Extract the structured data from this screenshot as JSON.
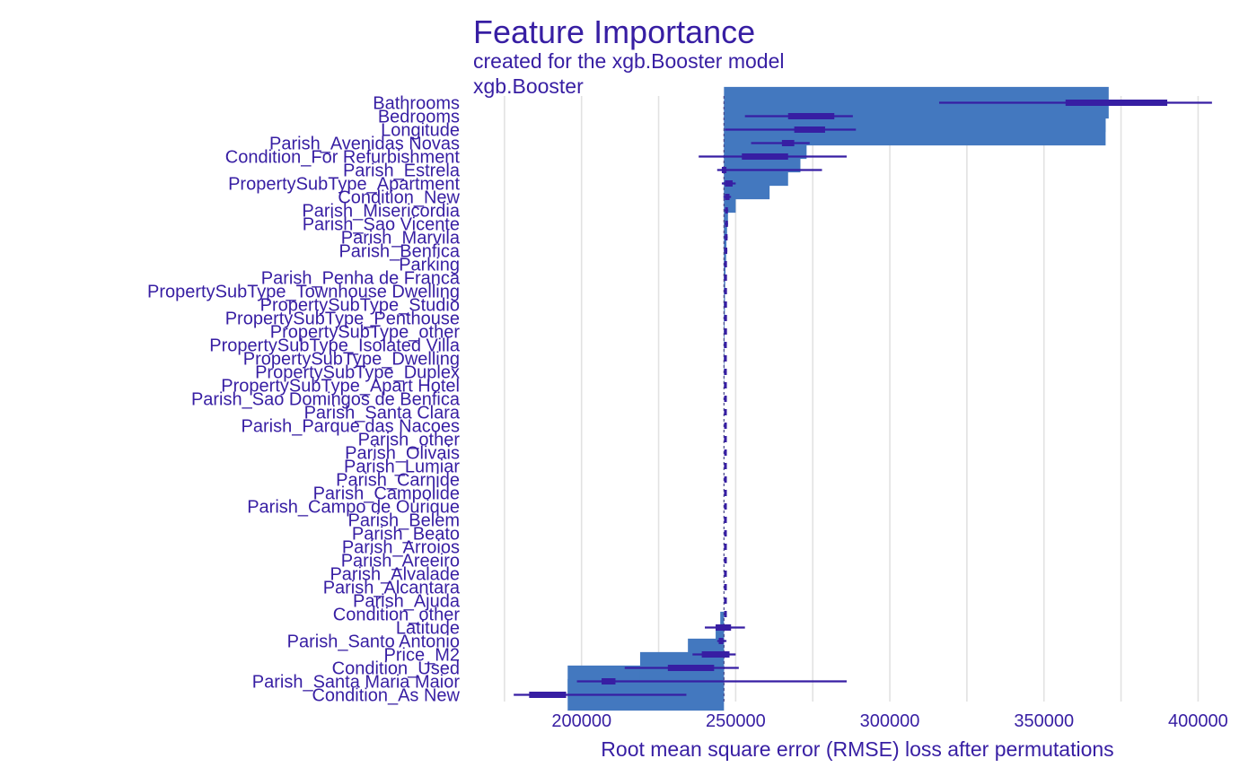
{
  "chart_data": {
    "type": "bar",
    "title": "Feature Importance",
    "subtitle": "created for the xgb.Booster model",
    "model_label": "xgb.Booster",
    "xlabel": "Root mean square error (RMSE) loss after permutations",
    "ylabel": "",
    "xlim": [
      173000,
      406000
    ],
    "xticks": [
      200000,
      250000,
      300000,
      350000,
      400000
    ],
    "xtick_labels": [
      "200000",
      "250000",
      "300000",
      "350000",
      "400000"
    ],
    "baseline": 246200,
    "grid": true,
    "bar_color": "#4378BF",
    "box_color": "#371EA3",
    "text_color": "#371EA3",
    "features": [
      {
        "name": "Bathrooms",
        "value": 371000,
        "whisker": [
          316000,
          404500
        ],
        "box": [
          357000,
          390000
        ]
      },
      {
        "name": "Bedrooms",
        "value": 370000,
        "whisker": [
          253000,
          288000
        ],
        "box": [
          267000,
          282000
        ]
      },
      {
        "name": "Longitude",
        "value": 370000,
        "whisker": [
          246500,
          289000
        ],
        "box": [
          269000,
          279000
        ]
      },
      {
        "name": "Parish_Avenidas Novas",
        "value": 273000,
        "whisker": [
          255000,
          274000
        ],
        "box": [
          265000,
          269000
        ]
      },
      {
        "name": "Condition_For Refurbishment",
        "value": 271000,
        "whisker": [
          238000,
          286000
        ],
        "box": [
          252000,
          267000
        ]
      },
      {
        "name": "Parish_Estrela",
        "value": 267000,
        "whisker": [
          244000,
          278000
        ],
        "box": [
          245500,
          247000
        ]
      },
      {
        "name": "PropertySubType_Apartment",
        "value": 261000,
        "whisker": [
          245500,
          250000
        ],
        "box": [
          246500,
          249000
        ]
      },
      {
        "name": "Condition_New",
        "value": 250000,
        "whisker": [
          246000,
          248500
        ],
        "box": [
          246500,
          248000
        ]
      },
      {
        "name": "Parish_Misericordia",
        "value": 247500,
        "whisker": [
          246400,
          247600
        ],
        "box": [
          246600,
          247400
        ]
      },
      {
        "name": "Parish_Sao Vicente",
        "value": 247200,
        "whisker": [
          246400,
          247500
        ],
        "box": [
          246600,
          247300
        ]
      },
      {
        "name": "Parish_Marvila",
        "value": 247000,
        "whisker": [
          246300,
          247400
        ],
        "box": [
          246500,
          247200
        ]
      },
      {
        "name": "Parish_Benfica",
        "value": 246900,
        "whisker": [
          246200,
          247300
        ],
        "box": [
          246400,
          247100
        ]
      },
      {
        "name": "Parking",
        "value": 246700,
        "whisker": [
          246200,
          247100
        ],
        "box": [
          246300,
          246900
        ]
      },
      {
        "name": "Parish_Penha de Franca",
        "value": 246600,
        "whisker": [
          246200,
          247000
        ],
        "box": [
          246300,
          246800
        ]
      },
      {
        "name": "PropertySubType_Townhouse Dwelling",
        "value": 246500,
        "whisker": [
          246200,
          246900
        ],
        "box": [
          246300,
          246700
        ]
      },
      {
        "name": "PropertySubType_Studio",
        "value": 246500,
        "whisker": [
          246200,
          246900
        ],
        "box": [
          246300,
          246700
        ]
      },
      {
        "name": "PropertySubType_Penthouse",
        "value": 246400,
        "whisker": [
          246200,
          246800
        ],
        "box": [
          246300,
          246600
        ]
      },
      {
        "name": "PropertySubType_other",
        "value": 246400,
        "whisker": [
          246200,
          246800
        ],
        "box": [
          246300,
          246600
        ]
      },
      {
        "name": "PropertySubType_Isolated Villa",
        "value": 246300,
        "whisker": [
          246200,
          246700
        ],
        "box": [
          246250,
          246550
        ]
      },
      {
        "name": "PropertySubType_Dwelling",
        "value": 246300,
        "whisker": [
          246200,
          246700
        ],
        "box": [
          246250,
          246550
        ]
      },
      {
        "name": "PropertySubType_Duplex",
        "value": 246300,
        "whisker": [
          246200,
          246700
        ],
        "box": [
          246250,
          246550
        ]
      },
      {
        "name": "PropertySubType_Apart Hotel",
        "value": 246200,
        "whisker": [
          246200,
          246600
        ],
        "box": [
          246250,
          246500
        ]
      },
      {
        "name": "Parish_Sao Domingos de Benfica",
        "value": 246200,
        "whisker": [
          246200,
          246600
        ],
        "box": [
          246250,
          246500
        ]
      },
      {
        "name": "Parish_Santa Clara",
        "value": 246200,
        "whisker": [
          246200,
          246600
        ],
        "box": [
          246250,
          246500
        ]
      },
      {
        "name": "Parish_Parque das Nacoes",
        "value": 246200,
        "whisker": [
          246200,
          246600
        ],
        "box": [
          246250,
          246500
        ]
      },
      {
        "name": "Parish_other",
        "value": 246200,
        "whisker": [
          246200,
          246600
        ],
        "box": [
          246250,
          246500
        ]
      },
      {
        "name": "Parish_Olivais",
        "value": 246200,
        "whisker": [
          246200,
          246600
        ],
        "box": [
          246250,
          246500
        ]
      },
      {
        "name": "Parish_Lumiar",
        "value": 246200,
        "whisker": [
          246200,
          246600
        ],
        "box": [
          246250,
          246500
        ]
      },
      {
        "name": "Parish_Carnide",
        "value": 246200,
        "whisker": [
          246200,
          246600
        ],
        "box": [
          246250,
          246500
        ]
      },
      {
        "name": "Parish_Campolide",
        "value": 246200,
        "whisker": [
          246200,
          246600
        ],
        "box": [
          246250,
          246500
        ]
      },
      {
        "name": "Parish_Campo de Ourique",
        "value": 246200,
        "whisker": [
          246200,
          246600
        ],
        "box": [
          246250,
          246500
        ]
      },
      {
        "name": "Parish_Belem",
        "value": 246200,
        "whisker": [
          246200,
          246600
        ],
        "box": [
          246250,
          246500
        ]
      },
      {
        "name": "Parish_Beato",
        "value": 246200,
        "whisker": [
          246200,
          246600
        ],
        "box": [
          246250,
          246500
        ]
      },
      {
        "name": "Parish_Arroios",
        "value": 246200,
        "whisker": [
          246200,
          246600
        ],
        "box": [
          246250,
          246500
        ]
      },
      {
        "name": "Parish_Areeiro",
        "value": 246200,
        "whisker": [
          246200,
          246600
        ],
        "box": [
          246250,
          246500
        ]
      },
      {
        "name": "Parish_Alvalade",
        "value": 246200,
        "whisker": [
          246200,
          246600
        ],
        "box": [
          246250,
          246500
        ]
      },
      {
        "name": "Parish_Alcantara",
        "value": 246200,
        "whisker": [
          246200,
          246600
        ],
        "box": [
          246250,
          246500
        ]
      },
      {
        "name": "Parish_Ajuda",
        "value": 246200,
        "whisker": [
          246200,
          246600
        ],
        "box": [
          246250,
          246500
        ]
      },
      {
        "name": "Condition_other",
        "value": 246200,
        "whisker": [
          246200,
          246600
        ],
        "box": [
          246250,
          246500
        ]
      },
      {
        "name": "Latitude",
        "value": 245000,
        "whisker": [
          240000,
          253000
        ],
        "box": [
          243500,
          248500
        ]
      },
      {
        "name": "Parish_Santo Antonio",
        "value": 243500,
        "whisker": [
          244000,
          247000
        ],
        "box": [
          244500,
          246000
        ]
      },
      {
        "name": "Price_M2",
        "value": 234500,
        "whisker": [
          236000,
          250000
        ],
        "box": [
          239000,
          248000
        ]
      },
      {
        "name": "Condition_Used",
        "value": 219000,
        "whisker": [
          214000,
          251000
        ],
        "box": [
          228000,
          243000
        ]
      },
      {
        "name": "Parish_Santa Maria Maior",
        "value": 195500,
        "whisker": [
          198500,
          286000
        ],
        "box": [
          206500,
          211000
        ]
      },
      {
        "name": "Condition_As New",
        "value": 195500,
        "whisker": [
          178000,
          234000
        ],
        "box": [
          183000,
          195000
        ]
      }
    ]
  }
}
